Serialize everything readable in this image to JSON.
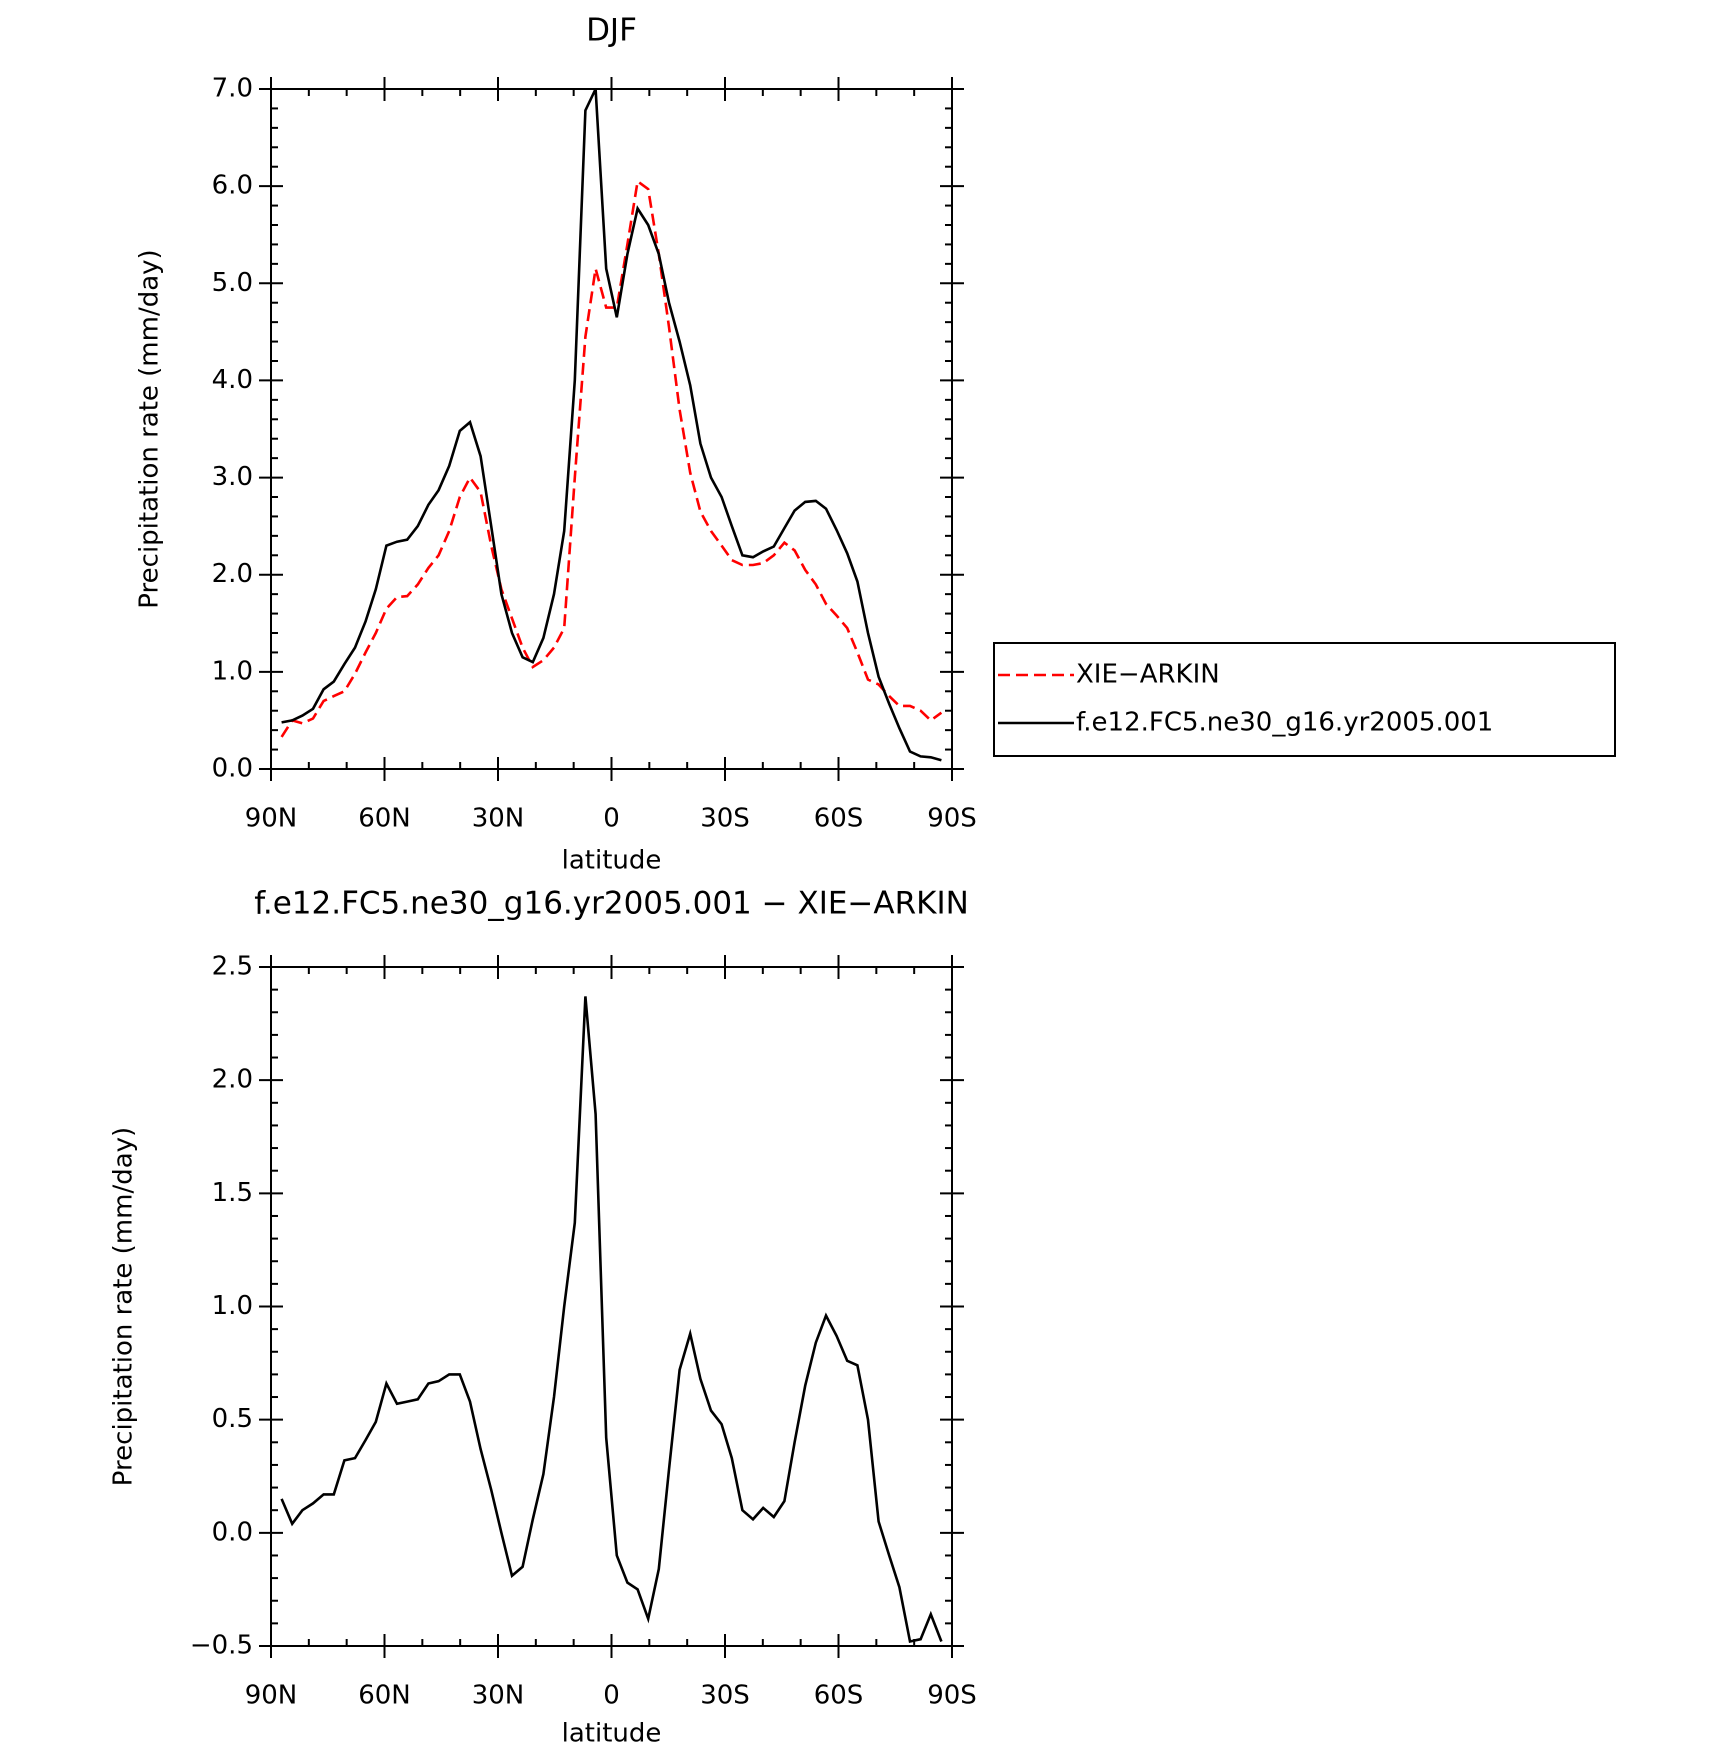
{
  "chart_data": [
    {
      "type": "line",
      "title": "DJF",
      "xlabel": "latitude",
      "ylabel": "Precipitation rate (mm/day)",
      "x": [
        87.2,
        84.4,
        81.7,
        78.9,
        76.1,
        73.4,
        70.6,
        67.8,
        65.0,
        62.3,
        59.5,
        56.7,
        54.0,
        51.2,
        48.4,
        45.7,
        42.9,
        40.1,
        37.4,
        34.6,
        31.8,
        29.1,
        26.3,
        23.5,
        20.8,
        18.0,
        15.2,
        12.5,
        9.7,
        6.9,
        4.2,
        1.4,
        -1.4,
        -4.2,
        -6.9,
        -9.7,
        -12.5,
        -15.2,
        -18.0,
        -20.8,
        -23.5,
        -26.3,
        -29.1,
        -31.8,
        -34.6,
        -37.4,
        -40.1,
        -42.9,
        -45.7,
        -48.4,
        -51.2,
        -54.0,
        -56.7,
        -59.5,
        -62.3,
        -65.0,
        -67.8,
        -70.6,
        -73.4,
        -76.1,
        -78.9,
        -81.7,
        -84.4,
        -87.2
      ],
      "series": [
        {
          "name": "XIE−ARKIN",
          "color": "#ff0000",
          "dash": true,
          "values": [
            0.33,
            0.5,
            0.47,
            0.52,
            0.7,
            0.75,
            0.8,
            0.98,
            1.2,
            1.4,
            1.65,
            1.77,
            1.78,
            1.9,
            2.07,
            2.2,
            2.45,
            2.8,
            3.0,
            2.85,
            2.3,
            1.85,
            1.55,
            1.25,
            1.05,
            1.12,
            1.25,
            1.45,
            3.0,
            4.45,
            5.15,
            4.75,
            4.75,
            5.4,
            6.05,
            5.97,
            5.3,
            4.55,
            3.7,
            3.05,
            2.65,
            2.45,
            2.3,
            2.15,
            2.1,
            2.1,
            2.12,
            2.2,
            2.33,
            2.25,
            2.05,
            1.9,
            1.7,
            1.58,
            1.45,
            1.2,
            0.92,
            0.87,
            0.75,
            0.65,
            0.65,
            0.6,
            0.5,
            0.58
          ]
        },
        {
          "name": "f.e12.FC5.ne30_g16.yr2005.001",
          "color": "#000000",
          "dash": false,
          "values": [
            0.48,
            0.5,
            0.55,
            0.62,
            0.82,
            0.9,
            1.08,
            1.25,
            1.52,
            1.85,
            2.3,
            2.34,
            2.36,
            2.5,
            2.72,
            2.87,
            3.12,
            3.48,
            3.57,
            3.22,
            2.5,
            1.8,
            1.4,
            1.15,
            1.1,
            1.35,
            1.8,
            2.45,
            4.0,
            6.78,
            7.0,
            5.15,
            4.65,
            5.3,
            5.77,
            5.6,
            5.3,
            4.8,
            4.4,
            3.95,
            3.35,
            3.0,
            2.8,
            2.5,
            2.2,
            2.18,
            2.24,
            2.29,
            2.48,
            2.66,
            2.75,
            2.76,
            2.68,
            2.46,
            2.22,
            1.93,
            1.4,
            0.95,
            0.67,
            0.42,
            0.18,
            0.13,
            0.12,
            0.09
          ]
        }
      ],
      "xlim": [
        90,
        -90
      ],
      "xticks": [
        {
          "value": 90,
          "label": "90N"
        },
        {
          "value": 60,
          "label": "60N"
        },
        {
          "value": 30,
          "label": "30N"
        },
        0,
        {
          "value": -30,
          "label": "30S"
        },
        {
          "value": -60,
          "label": "60S"
        },
        {
          "value": -90,
          "label": "90S"
        }
      ],
      "ylim": [
        0,
        7
      ],
      "yticks": [
        {
          "value": 0,
          "label": "0.0"
        },
        {
          "value": 1,
          "label": "1.0"
        },
        {
          "value": 2,
          "label": "2.0"
        },
        {
          "value": 3,
          "label": "3.0"
        },
        {
          "value": 4,
          "label": "4.0"
        },
        {
          "value": 5,
          "label": "5.0"
        },
        {
          "value": 6,
          "label": "6.0"
        },
        {
          "value": 7,
          "label": "7.0"
        }
      ],
      "legend": "right"
    },
    {
      "type": "line",
      "title": "f.e12.FC5.ne30_g16.yr2005.001 − XIE−ARKIN",
      "xlabel": "latitude",
      "ylabel": "Precipitation rate (mm/day)",
      "x": [
        87.2,
        84.4,
        81.7,
        78.9,
        76.1,
        73.4,
        70.6,
        67.8,
        65.0,
        62.3,
        59.5,
        56.7,
        54.0,
        51.2,
        48.4,
        45.7,
        42.9,
        40.1,
        37.4,
        34.6,
        31.8,
        29.1,
        26.3,
        23.5,
        20.8,
        18.0,
        15.2,
        12.5,
        9.7,
        6.9,
        4.2,
        1.4,
        -1.4,
        -4.2,
        -6.9,
        -9.7,
        -12.5,
        -15.2,
        -18.0,
        -20.8,
        -23.5,
        -26.3,
        -29.1,
        -31.8,
        -34.6,
        -37.4,
        -40.1,
        -42.9,
        -45.7,
        -48.4,
        -51.2,
        -54.0,
        -56.7,
        -59.5,
        -62.3,
        -65.0,
        -67.8,
        -70.6,
        -73.4,
        -76.1,
        -78.9,
        -81.7,
        -84.4,
        -87.2
      ],
      "series": [
        {
          "color": "#000000",
          "dash": false,
          "values": [
            0.15,
            0.04,
            0.1,
            0.13,
            0.17,
            0.17,
            0.32,
            0.33,
            0.41,
            0.49,
            0.66,
            0.57,
            0.58,
            0.59,
            0.66,
            0.67,
            0.7,
            0.7,
            0.58,
            0.37,
            0.19,
            0.0,
            -0.19,
            -0.15,
            0.06,
            0.26,
            0.6,
            1.0,
            1.37,
            2.37,
            1.85,
            0.42,
            -0.1,
            -0.22,
            -0.25,
            -0.38,
            -0.16,
            0.28,
            0.72,
            0.88,
            0.68,
            0.54,
            0.48,
            0.33,
            0.1,
            0.06,
            0.11,
            0.07,
            0.14,
            0.4,
            0.65,
            0.84,
            0.96,
            0.87,
            0.76,
            0.74,
            0.5,
            0.05,
            -0.1,
            -0.24,
            -0.48,
            -0.47,
            -0.36,
            -0.48
          ]
        }
      ],
      "xlim": [
        90,
        -90
      ],
      "xticks": [
        {
          "value": 90,
          "label": "90N"
        },
        {
          "value": 60,
          "label": "60N"
        },
        {
          "value": 30,
          "label": "30N"
        },
        0,
        {
          "value": -30,
          "label": "30S"
        },
        {
          "value": -60,
          "label": "60S"
        },
        {
          "value": -90,
          "label": "90S"
        }
      ],
      "ylim": [
        -0.5,
        2.5
      ],
      "yticks": [
        {
          "value": -0.5,
          "label": "−0.5"
        },
        {
          "value": 0,
          "label": "0.0"
        },
        {
          "value": 0.5,
          "label": "0.5"
        },
        {
          "value": 1,
          "label": "1.0"
        },
        {
          "value": 1.5,
          "label": "1.5"
        },
        {
          "value": 2,
          "label": "2.0"
        },
        2.5
      ]
    }
  ]
}
